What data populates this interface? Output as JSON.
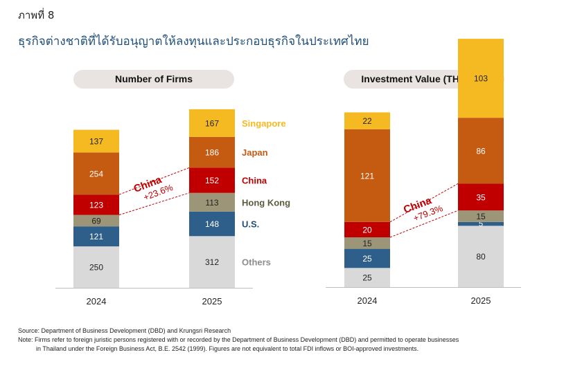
{
  "figure_label": "ภาพที่ 8",
  "title": "ธุรกิจต่างชาติที่ได้รับอนุญาตให้ลงทุนและประกอบธุรกิจในประเทศไทย",
  "source": "Source: Department of Business Development (DBD) and Krungsri Research",
  "note_line1": "Note: Firms refer to foreign juristic persons registered with or recorded by the Department of Business Development (DBD) and permitted to operate businesses",
  "note_line2": "in Thailand under the Foreign Business Act, B.E. 2542 (1999). Figures are not equivalent to total FDI inflows or BOI-approved investments.",
  "colors": {
    "Others": "#d9d9d9",
    "U.S.": "#2e5f8a",
    "Hong Kong": "#9d9578",
    "China": "#c00000",
    "Japan": "#c55a11",
    "Singapore": "#f5b921",
    "label_others": "#8c8c8c",
    "label_us": "#1f4e79",
    "label_hk": "#5a5a3c",
    "label_china": "#c00000",
    "label_japan": "#c55a11",
    "label_singapore": "#f5b921"
  },
  "chart_data": [
    {
      "type": "bar",
      "stacked": true,
      "title": "Number of Firms",
      "categories": [
        "2024",
        "2025"
      ],
      "series": [
        {
          "name": "Others",
          "values": [
            250,
            312
          ]
        },
        {
          "name": "U.S.",
          "values": [
            121,
            148
          ]
        },
        {
          "name": "Hong Kong",
          "values": [
            69,
            113
          ]
        },
        {
          "name": "China",
          "values": [
            123,
            152
          ]
        },
        {
          "name": "Japan",
          "values": [
            254,
            186
          ]
        },
        {
          "name": "Singapore",
          "values": [
            137,
            167
          ]
        }
      ],
      "annotation": {
        "series": "China",
        "label": "China",
        "change": "+23.6%"
      }
    },
    {
      "type": "bar",
      "stacked": true,
      "title": "Investment Value (THB, bn)",
      "categories": [
        "2024",
        "2025"
      ],
      "series": [
        {
          "name": "Others",
          "values": [
            25,
            80
          ]
        },
        {
          "name": "U.S.",
          "values": [
            25,
            5
          ]
        },
        {
          "name": "Hong Kong",
          "values": [
            15,
            15
          ]
        },
        {
          "name": "China",
          "values": [
            20,
            35
          ]
        },
        {
          "name": "Japan",
          "values": [
            121,
            86
          ]
        },
        {
          "name": "Singapore",
          "values": [
            22,
            103
          ]
        }
      ],
      "annotation": {
        "series": "China",
        "label": "China",
        "change": "+79.3%"
      }
    }
  ]
}
